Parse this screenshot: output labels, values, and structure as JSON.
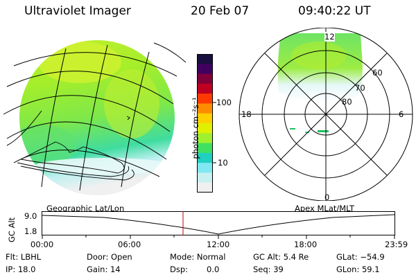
{
  "header": {
    "title": "Ultraviolet Imager",
    "date": "20 Feb 07",
    "time": "09:40:22 UT"
  },
  "colorbar": {
    "label": "photon cm⁻²s⁻¹",
    "tick_100": "100",
    "tick_10": "10",
    "colors_top_to_bottom": [
      "#1a1040",
      "#400060",
      "#80003a",
      "#c00020",
      "#ff3a00",
      "#ff8c00",
      "#ffd000",
      "#e0f000",
      "#a0f030",
      "#40e060",
      "#20d0c0",
      "#80e8f0",
      "#c8f0f0",
      "#f0f0f0"
    ]
  },
  "polar": {
    "label_12": "12",
    "label_6": "6",
    "label_18": "18",
    "label_0": "0",
    "label_60": "60",
    "label_70": "70",
    "label_80": "80"
  },
  "timeline": {
    "left_label": "Geographic Lat/Lon",
    "right_label": "Apex MLat/MLT",
    "y_axis_label": "GC Alt",
    "y_top": "9.0",
    "y_bottom": "1.8",
    "ticks": [
      "00:00",
      "06:00",
      "12:00",
      "18:00",
      "23:59"
    ],
    "cursor_color": "#c00000"
  },
  "info": {
    "flt": "Flt: LBHL",
    "door": "Door: Open",
    "mode": "Mode: Normal",
    "gc_alt": "GC Alt: 5.4 Re",
    "glat": "GLat: −54.9",
    "ip": "IP: 18.0",
    "gain": "Gain: 14",
    "dsp_label": "Dsp:",
    "dsp_value": "0.0",
    "seq": "Seq: 39",
    "glon": "GLon:  59.1"
  }
}
